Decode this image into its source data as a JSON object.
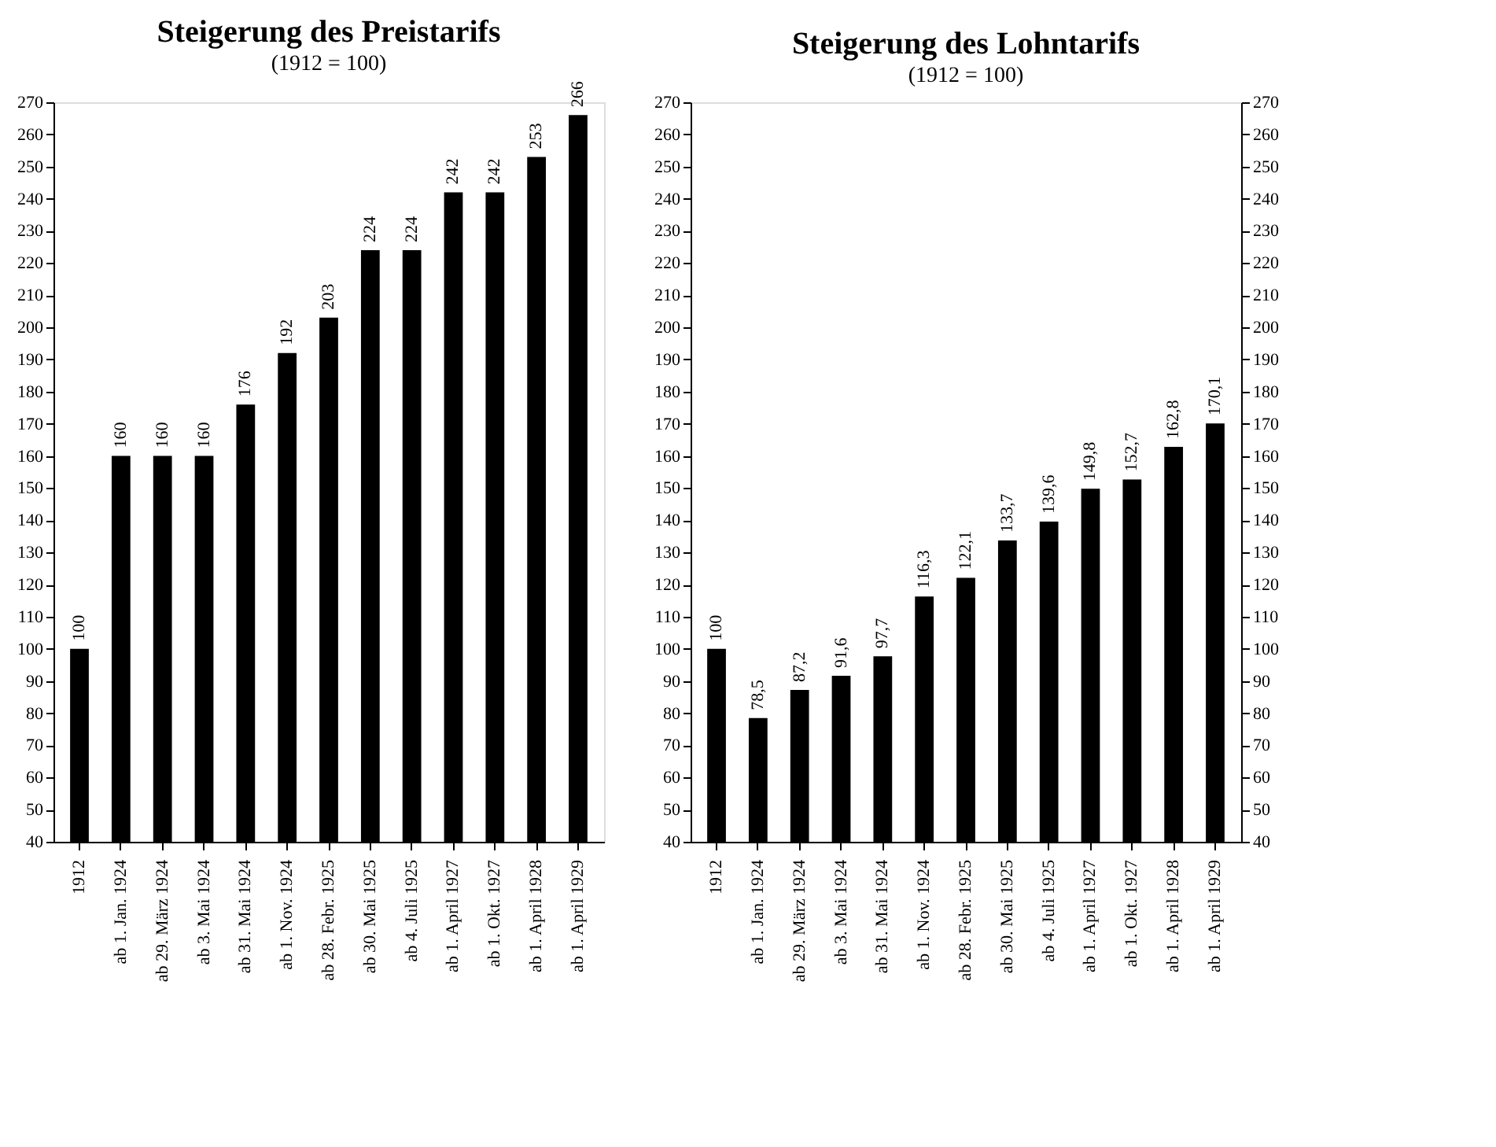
{
  "chart_data": [
    {
      "type": "bar",
      "title": "Steigerung des Preistarifs",
      "subtitle": "(1912 = 100)",
      "categories": [
        "1912",
        "ab 1. Jan. 1924",
        "ab 29. März 1924",
        "ab 3. Mai 1924",
        "ab 31. Mai 1924",
        "ab 1. Nov. 1924",
        "ab 28. Febr. 1925",
        "ab 30. Mai 1925",
        "ab 4. Juli 1925",
        "ab 1. April 1927",
        "ab 1. Okt. 1927",
        "ab 1. April 1928",
        "ab 1. April 1929"
      ],
      "values": [
        100,
        160,
        160,
        160,
        176,
        192,
        203,
        224,
        224,
        242,
        242,
        253,
        266
      ],
      "color": "#000000",
      "data_labels": true,
      "grid": false,
      "ylim": [
        40,
        270
      ],
      "yticks": [
        40,
        50,
        60,
        70,
        80,
        90,
        100,
        110,
        120,
        130,
        140,
        150,
        160,
        170,
        180,
        190,
        200,
        210,
        220,
        230,
        240,
        250,
        260,
        270
      ]
    },
    {
      "type": "bar",
      "title": "Steigerung des Lohntarifs",
      "subtitle": "(1912 = 100)",
      "categories": [
        "1912",
        "ab 1. Jan. 1924",
        "ab 29. März 1924",
        "ab 3. Mai 1924",
        "ab 31. Mai 1924",
        "ab 1. Nov. 1924",
        "ab 28. Febr. 1925",
        "ab 30. Mai 1925",
        "ab 4. Juli 1925",
        "ab 1. April 1927",
        "ab 1. Okt. 1927",
        "ab 1. April 1928",
        "ab 1. April 1929"
      ],
      "values": [
        100,
        78.5,
        87.2,
        91.6,
        97.7,
        116.3,
        122.1,
        133.7,
        139.6,
        149.8,
        152.7,
        162.8,
        170.1
      ],
      "value_labels": [
        "100",
        "78,5",
        "87,2",
        "91,6",
        "97,7",
        "116,3",
        "122,1",
        "133,7",
        "139,6",
        "149,8",
        "152,7",
        "162,8",
        "170,1"
      ],
      "color": "#000000",
      "grid": false,
      "ylim": [
        40,
        270
      ],
      "yticks": [
        40,
        50,
        60,
        70,
        80,
        90,
        100,
        110,
        120,
        130,
        140,
        150,
        160,
        170,
        180,
        190,
        200,
        210,
        220,
        230,
        240,
        250,
        260,
        270
      ],
      "y2lim": [
        40,
        270
      ],
      "y2ticks": [
        40,
        50,
        60,
        70,
        80,
        90,
        100,
        110,
        120,
        130,
        140,
        150,
        160,
        170,
        180,
        190,
        200,
        210,
        220,
        230,
        240,
        250,
        260,
        270
      ]
    }
  ]
}
